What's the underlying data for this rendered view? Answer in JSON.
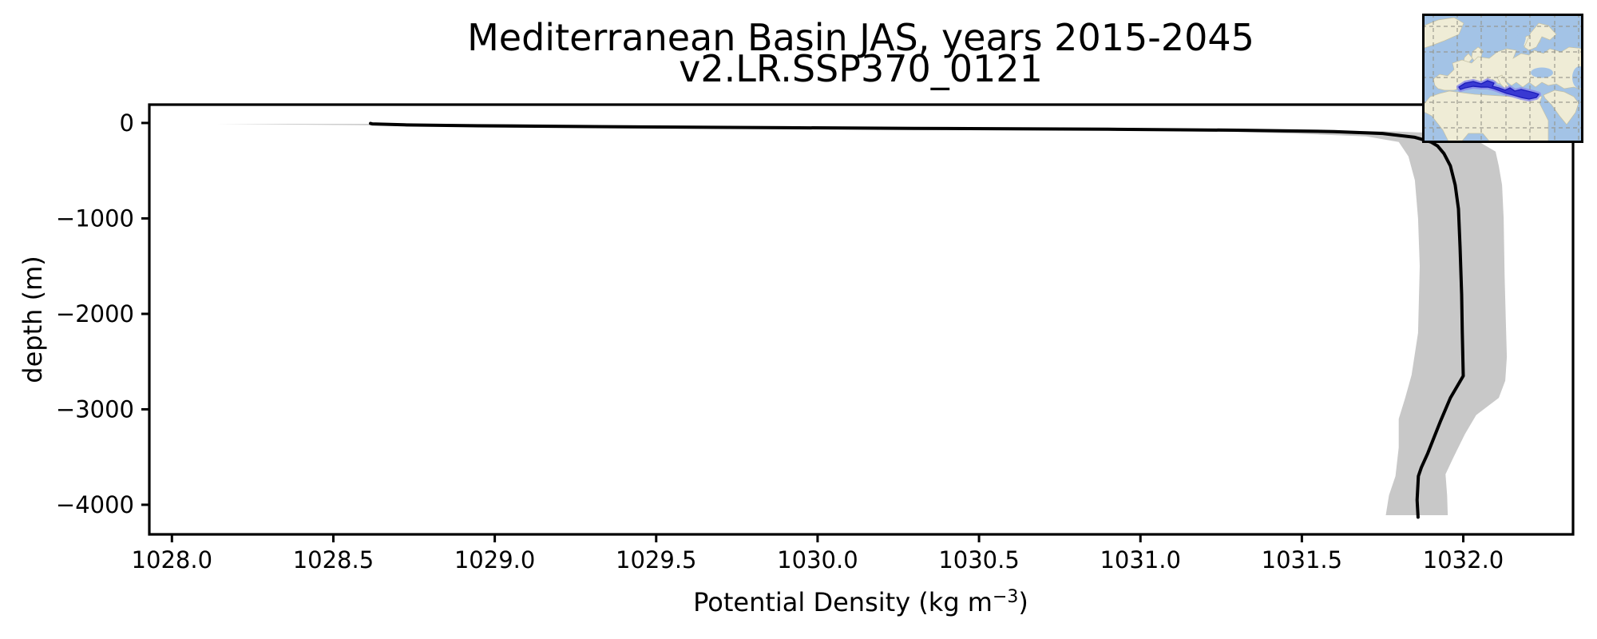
{
  "figure": {
    "title_line1": "Mediterranean Basin JAS, years 2015-2045",
    "title_line2": "v2.LR.SSP370_0121",
    "ylabel": "depth (m)",
    "xlabel_prefix": "Potential Density (kg m",
    "xlabel_sup": "−3",
    "xlabel_suffix": ")",
    "xlabel_full": "Potential Density (kg m⁻³)"
  },
  "chart_data": {
    "type": "line",
    "title": "Mediterranean Basin JAS, years 2015-2045  v2.LR.SSP370_0121",
    "xlabel": "Potential Density (kg m⁻³)",
    "ylabel": "depth (m)",
    "xlim": [
      1027.93,
      1032.34
    ],
    "ylim": [
      -4310,
      192
    ],
    "grid": false,
    "legend": "none",
    "x_ticks": [
      1028.0,
      1028.5,
      1029.0,
      1029.5,
      1030.0,
      1030.5,
      1031.0,
      1031.5,
      1032.0
    ],
    "x_tick_labels": [
      "1028.0",
      "1028.5",
      "1029.0",
      "1029.5",
      "1030.0",
      "1030.5",
      "1031.0",
      "1031.5",
      "1032.0"
    ],
    "y_ticks": [
      0,
      -1000,
      -2000,
      -3000,
      -4000
    ],
    "y_tick_labels": [
      "0",
      "−1000",
      "−2000",
      "−3000",
      "−4000"
    ],
    "series": [
      {
        "name": "mean potential density profile",
        "color": "#000000",
        "line_width": 4,
        "points": [
          [
            1028.615,
            -5
          ],
          [
            1028.62,
            -10
          ],
          [
            1028.72,
            -20
          ],
          [
            1028.95,
            -30
          ],
          [
            1029.4,
            -40
          ],
          [
            1029.9,
            -50
          ],
          [
            1030.4,
            -58
          ],
          [
            1030.9,
            -66
          ],
          [
            1031.3,
            -76
          ],
          [
            1031.6,
            -90
          ],
          [
            1031.75,
            -110
          ],
          [
            1031.85,
            -150
          ],
          [
            1031.9,
            -200
          ],
          [
            1031.92,
            -240
          ],
          [
            1031.94,
            -320
          ],
          [
            1031.96,
            -450
          ],
          [
            1031.975,
            -650
          ],
          [
            1031.985,
            -900
          ],
          [
            1031.99,
            -1300
          ],
          [
            1031.995,
            -1800
          ],
          [
            1031.997,
            -2200
          ],
          [
            1032.0,
            -2650
          ],
          [
            1031.96,
            -2880
          ],
          [
            1031.93,
            -3120
          ],
          [
            1031.91,
            -3290
          ],
          [
            1031.89,
            -3460
          ],
          [
            1031.87,
            -3610
          ],
          [
            1031.861,
            -3700
          ],
          [
            1031.857,
            -3950
          ],
          [
            1031.86,
            -4130
          ]
        ]
      }
    ],
    "band": {
      "name": "plus-minus one standard deviation envelope",
      "color": "#c8c8c8",
      "upper": [
        [
          1029.05,
          -10
        ],
        [
          1029.35,
          -22
        ],
        [
          1029.75,
          -34
        ],
        [
          1030.3,
          -46
        ],
        [
          1030.9,
          -58
        ],
        [
          1031.45,
          -72
        ],
        [
          1031.8,
          -90
        ],
        [
          1031.98,
          -115
        ],
        [
          1032.03,
          -160
        ],
        [
          1032.06,
          -220
        ],
        [
          1032.1,
          -300
        ],
        [
          1032.11,
          -450
        ],
        [
          1032.12,
          -650
        ],
        [
          1032.125,
          -1000
        ],
        [
          1032.128,
          -1600
        ],
        [
          1032.132,
          -2100
        ],
        [
          1032.135,
          -2450
        ],
        [
          1032.13,
          -2700
        ],
        [
          1032.11,
          -2880
        ],
        [
          1032.04,
          -3060
        ],
        [
          1032.005,
          -3260
        ],
        [
          1031.97,
          -3500
        ],
        [
          1031.945,
          -3680
        ],
        [
          1031.95,
          -3900
        ],
        [
          1031.952,
          -4109
        ]
      ],
      "lower": [
        [
          1028.14,
          -10
        ],
        [
          1028.4,
          -18
        ],
        [
          1028.8,
          -28
        ],
        [
          1029.3,
          -40
        ],
        [
          1029.9,
          -52
        ],
        [
          1030.45,
          -64
        ],
        [
          1030.95,
          -78
        ],
        [
          1031.3,
          -95
        ],
        [
          1031.55,
          -120
        ],
        [
          1031.7,
          -140
        ],
        [
          1031.8,
          -200
        ],
        [
          1031.83,
          -350
        ],
        [
          1031.85,
          -600
        ],
        [
          1031.86,
          -1000
        ],
        [
          1031.865,
          -1500
        ],
        [
          1031.86,
          -2200
        ],
        [
          1031.84,
          -2640
        ],
        [
          1031.82,
          -2880
        ],
        [
          1031.8,
          -3100
        ],
        [
          1031.8,
          -3400
        ],
        [
          1031.79,
          -3700
        ],
        [
          1031.77,
          -3900
        ],
        [
          1031.76,
          -4109
        ]
      ]
    }
  },
  "inset_map": {
    "name": "mediterranean-basin-location-map",
    "ocean_color": "#a3c3e6",
    "land_color": "#efecd6",
    "coast_color": "#c4c0a4",
    "grid_color": "#95958a",
    "highlight_fill": "#3939d2",
    "highlight_edge": "#1d1dbd",
    "highlight_halo": "#8d8dea",
    "border_color": "#000000"
  }
}
